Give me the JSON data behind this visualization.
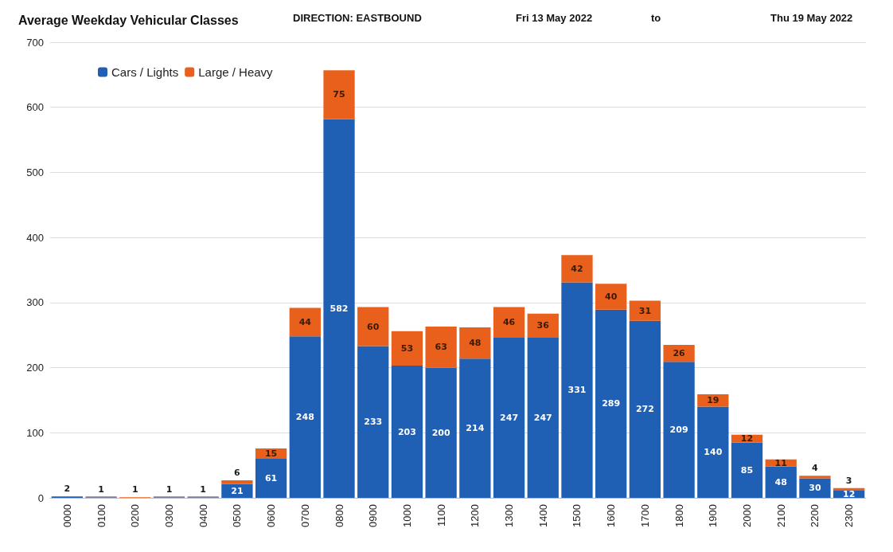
{
  "chart_data": {
    "type": "bar",
    "stacked": true,
    "title": "Average Weekday Vehicular Classes",
    "annotations": [
      "DIRECTION: EASTBOUND",
      "Fri 13 May 2022",
      "to",
      "Thu 19 May 2022"
    ],
    "categories": [
      "0000",
      "0100",
      "0200",
      "0300",
      "0400",
      "0500",
      "0600",
      "0700",
      "0800",
      "0900",
      "1000",
      "1100",
      "1200",
      "1300",
      "1400",
      "1500",
      "1600",
      "1700",
      "1800",
      "1900",
      "2000",
      "2100",
      "2200",
      "2300"
    ],
    "series": [
      {
        "name": "Cars / Lights",
        "color": "#1f5fb4",
        "values": [
          2,
          1,
          0,
          1,
          1,
          21,
          61,
          248,
          582,
          233,
          203,
          200,
          214,
          247,
          247,
          331,
          289,
          272,
          209,
          140,
          85,
          48,
          30,
          12
        ],
        "value_labels": [
          "2",
          "1",
          null,
          "1",
          "1",
          "21",
          "61",
          "248",
          "582",
          "233",
          "203",
          "200",
          "214",
          "247",
          "247",
          "331",
          "289",
          "272",
          "209",
          "140",
          "85",
          "48",
          "30",
          "12"
        ]
      },
      {
        "name": "Large / Heavy",
        "color": "#e8601c",
        "values": [
          null,
          1,
          1,
          1,
          1,
          6,
          15,
          44,
          75,
          60,
          53,
          63,
          48,
          46,
          36,
          42,
          40,
          31,
          26,
          19,
          12,
          11,
          4,
          3
        ],
        "value_labels": [
          null,
          null,
          "1",
          null,
          null,
          "6",
          "15",
          "44",
          "75",
          "60",
          "53",
          "63",
          "48",
          "46",
          "36",
          "42",
          "40",
          "31",
          "26",
          "19",
          "12",
          "11",
          "4",
          "3"
        ]
      }
    ],
    "ylim": [
      0,
      700
    ],
    "yticks": [
      0,
      100,
      200,
      300,
      400,
      500,
      600,
      700
    ],
    "grid": "y",
    "legend": "top left"
  }
}
